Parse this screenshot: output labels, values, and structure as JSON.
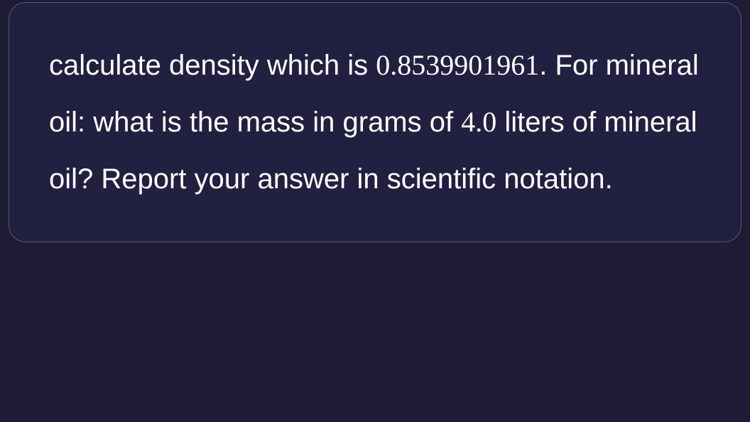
{
  "card": {
    "text_part_1": "calculate density which is",
    "density_value": "0.8539901961",
    "text_part_2": ". ",
    "text_part_3": "For mineral oil: what is the mass in grams of",
    "volume_value": "4.0",
    "text_part_4": " liters of mineral oil? Report your answer in scientific notation."
  },
  "styling": {
    "background_color": "#1e1b35",
    "card_background": "#212040",
    "border_color": "#5a5573",
    "text_color": "#ffffff",
    "border_radius": 24,
    "font_size": 40,
    "line_height": 2.0,
    "number_font_family": "Georgia, serif",
    "body_font_family": "Arial, Helvetica, sans-serif"
  }
}
